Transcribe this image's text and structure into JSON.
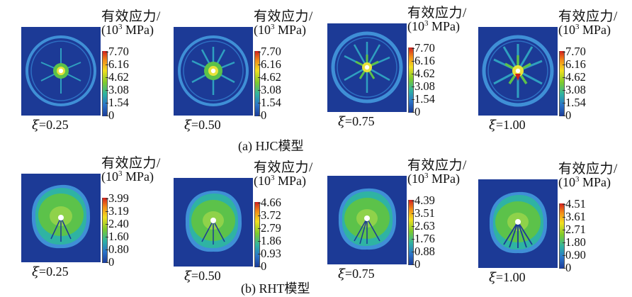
{
  "colorbar_title_line1": "有效应力/",
  "colorbar_title_line2_pre": "(10",
  "colorbar_title_sup": "3",
  "colorbar_title_line2_post": " MPa)",
  "xi_symbol": "ξ",
  "rows": [
    {
      "caption": "(a) HJC模型",
      "panels": [
        {
          "xi_value": "=0.25",
          "ticks": [
            "7.70",
            "6.16",
            "4.62",
            "3.08",
            "1.54",
            "0"
          ]
        },
        {
          "xi_value": "=0.50",
          "ticks": [
            "7.70",
            "6.16",
            "4.62",
            "3.08",
            "1.54",
            "0"
          ]
        },
        {
          "xi_value": "=0.75",
          "ticks": [
            "7.70",
            "6.16",
            "4.62",
            "3.08",
            "1.54",
            "0"
          ]
        },
        {
          "xi_value": "=1.00",
          "ticks": [
            "7.70",
            "6.16",
            "4.62",
            "3.08",
            "1.54",
            "0"
          ]
        }
      ]
    },
    {
      "caption": "(b) RHT模型",
      "panels": [
        {
          "xi_value": "=0.25",
          "ticks": [
            "3.99",
            "3.19",
            "2.40",
            "1.60",
            "0.80",
            "0"
          ]
        },
        {
          "xi_value": "=0.50",
          "ticks": [
            "4.66",
            "3.72",
            "2.79",
            "1.86",
            "0.93",
            "0"
          ]
        },
        {
          "xi_value": "=0.75",
          "ticks": [
            "4.39",
            "3.51",
            "2.63",
            "1.76",
            "0.88",
            "0"
          ]
        },
        {
          "xi_value": "=1.00",
          "ticks": [
            "4.51",
            "3.61",
            "2.71",
            "1.80",
            "0.90",
            "0"
          ]
        }
      ]
    }
  ],
  "colors": {
    "background_blue": "#1c3a96",
    "ring_blue": "#3f8fd6",
    "green": "#5cc24a",
    "yellow": "#e8e23a",
    "red": "#d21f1f"
  }
}
